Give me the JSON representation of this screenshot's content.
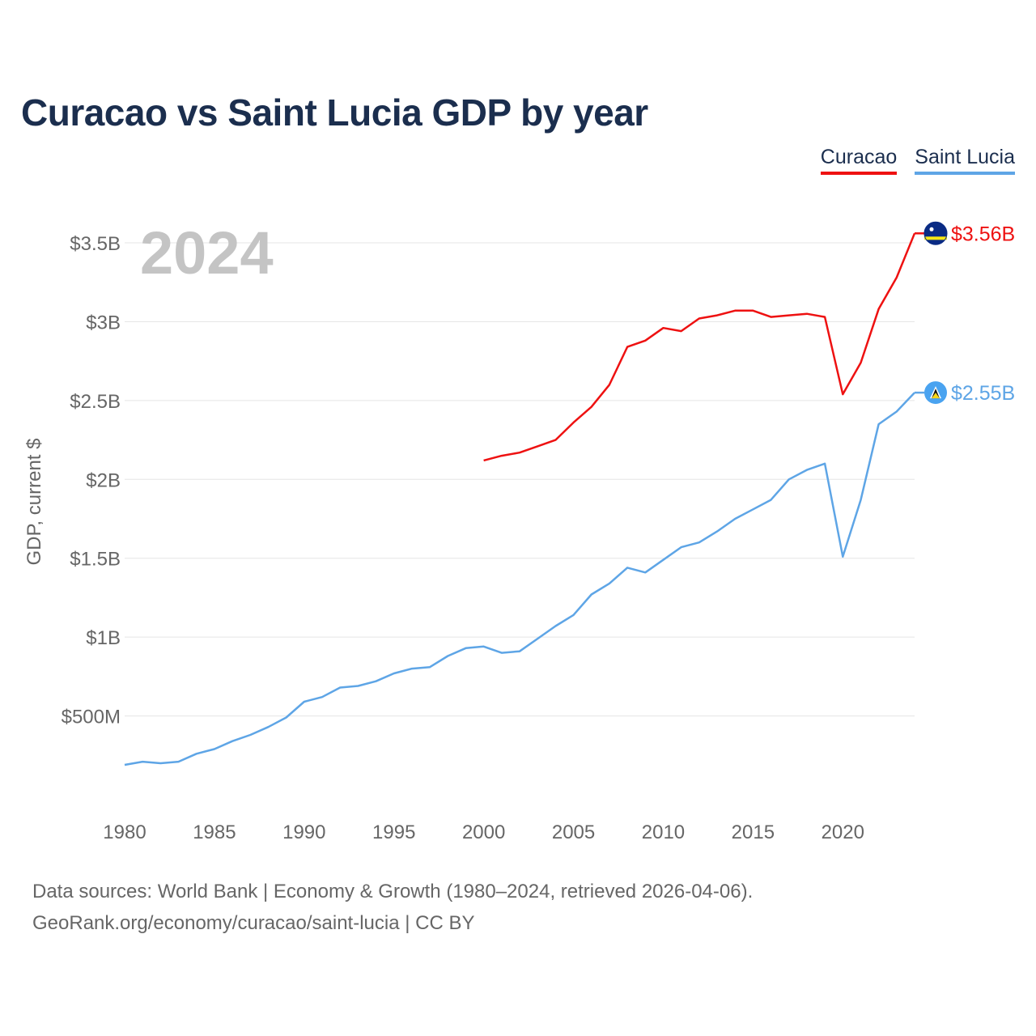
{
  "title": "Curacao vs Saint Lucia GDP by year",
  "legend": [
    {
      "name": "Curacao",
      "color": "#ee1111"
    },
    {
      "name": "Saint Lucia",
      "color": "#5ea5e6"
    }
  ],
  "footer": {
    "line1": "Data sources: World Bank | Economy & Growth (1980–2024, retrieved 2026-04-06).",
    "line2": "GeoRank.org/economy/curacao/saint-lucia | CC BY"
  },
  "chart_data": {
    "type": "line",
    "title": "Curacao vs Saint Lucia GDP by year",
    "year_label": "2024",
    "ylabel": "GDP, current $",
    "xlabel": "",
    "xlim": [
      1980,
      2024
    ],
    "ylim": [
      0,
      3.8
    ],
    "grid": true,
    "legend_position": "top-right",
    "y_ticks": [
      {
        "value": 0.5,
        "label": "$500M"
      },
      {
        "value": 1.0,
        "label": "$1B"
      },
      {
        "value": 1.5,
        "label": "$1.5B"
      },
      {
        "value": 2.0,
        "label": "$2B"
      },
      {
        "value": 2.5,
        "label": "$2.5B"
      },
      {
        "value": 3.0,
        "label": "$3B"
      },
      {
        "value": 3.5,
        "label": "$3.5B"
      }
    ],
    "x_ticks": [
      1980,
      1985,
      1990,
      1995,
      2000,
      2005,
      2010,
      2015,
      2020
    ],
    "series": [
      {
        "name": "Curacao",
        "color": "#ee1111",
        "end_label": "$3.56B",
        "flag": "curacao-flag-icon",
        "x": [
          2000,
          2001,
          2002,
          2003,
          2004,
          2005,
          2006,
          2007,
          2008,
          2009,
          2010,
          2011,
          2012,
          2013,
          2014,
          2015,
          2016,
          2017,
          2018,
          2019,
          2020,
          2021,
          2022,
          2023,
          2024
        ],
        "values": [
          2.12,
          2.15,
          2.17,
          2.21,
          2.25,
          2.36,
          2.46,
          2.6,
          2.84,
          2.88,
          2.96,
          2.94,
          3.02,
          3.04,
          3.07,
          3.07,
          3.03,
          3.04,
          3.05,
          3.03,
          2.54,
          2.74,
          3.08,
          3.28,
          3.56
        ]
      },
      {
        "name": "Saint Lucia",
        "color": "#5ea5e6",
        "end_label": "$2.55B",
        "flag": "saint-lucia-flag-icon",
        "x": [
          1980,
          1981,
          1982,
          1983,
          1984,
          1985,
          1986,
          1987,
          1988,
          1989,
          1990,
          1991,
          1992,
          1993,
          1994,
          1995,
          1996,
          1997,
          1998,
          1999,
          2000,
          2001,
          2002,
          2003,
          2004,
          2005,
          2006,
          2007,
          2008,
          2009,
          2010,
          2011,
          2012,
          2013,
          2014,
          2015,
          2016,
          2017,
          2018,
          2019,
          2020,
          2021,
          2022,
          2023,
          2024
        ],
        "values": [
          0.19,
          0.21,
          0.2,
          0.21,
          0.26,
          0.29,
          0.34,
          0.38,
          0.43,
          0.49,
          0.59,
          0.62,
          0.68,
          0.69,
          0.72,
          0.77,
          0.8,
          0.81,
          0.88,
          0.93,
          0.94,
          0.9,
          0.91,
          0.99,
          1.07,
          1.14,
          1.27,
          1.34,
          1.44,
          1.41,
          1.49,
          1.57,
          1.6,
          1.67,
          1.75,
          1.81,
          1.87,
          2.0,
          2.06,
          2.1,
          1.51,
          1.87,
          2.35,
          2.43,
          2.55
        ]
      }
    ]
  }
}
